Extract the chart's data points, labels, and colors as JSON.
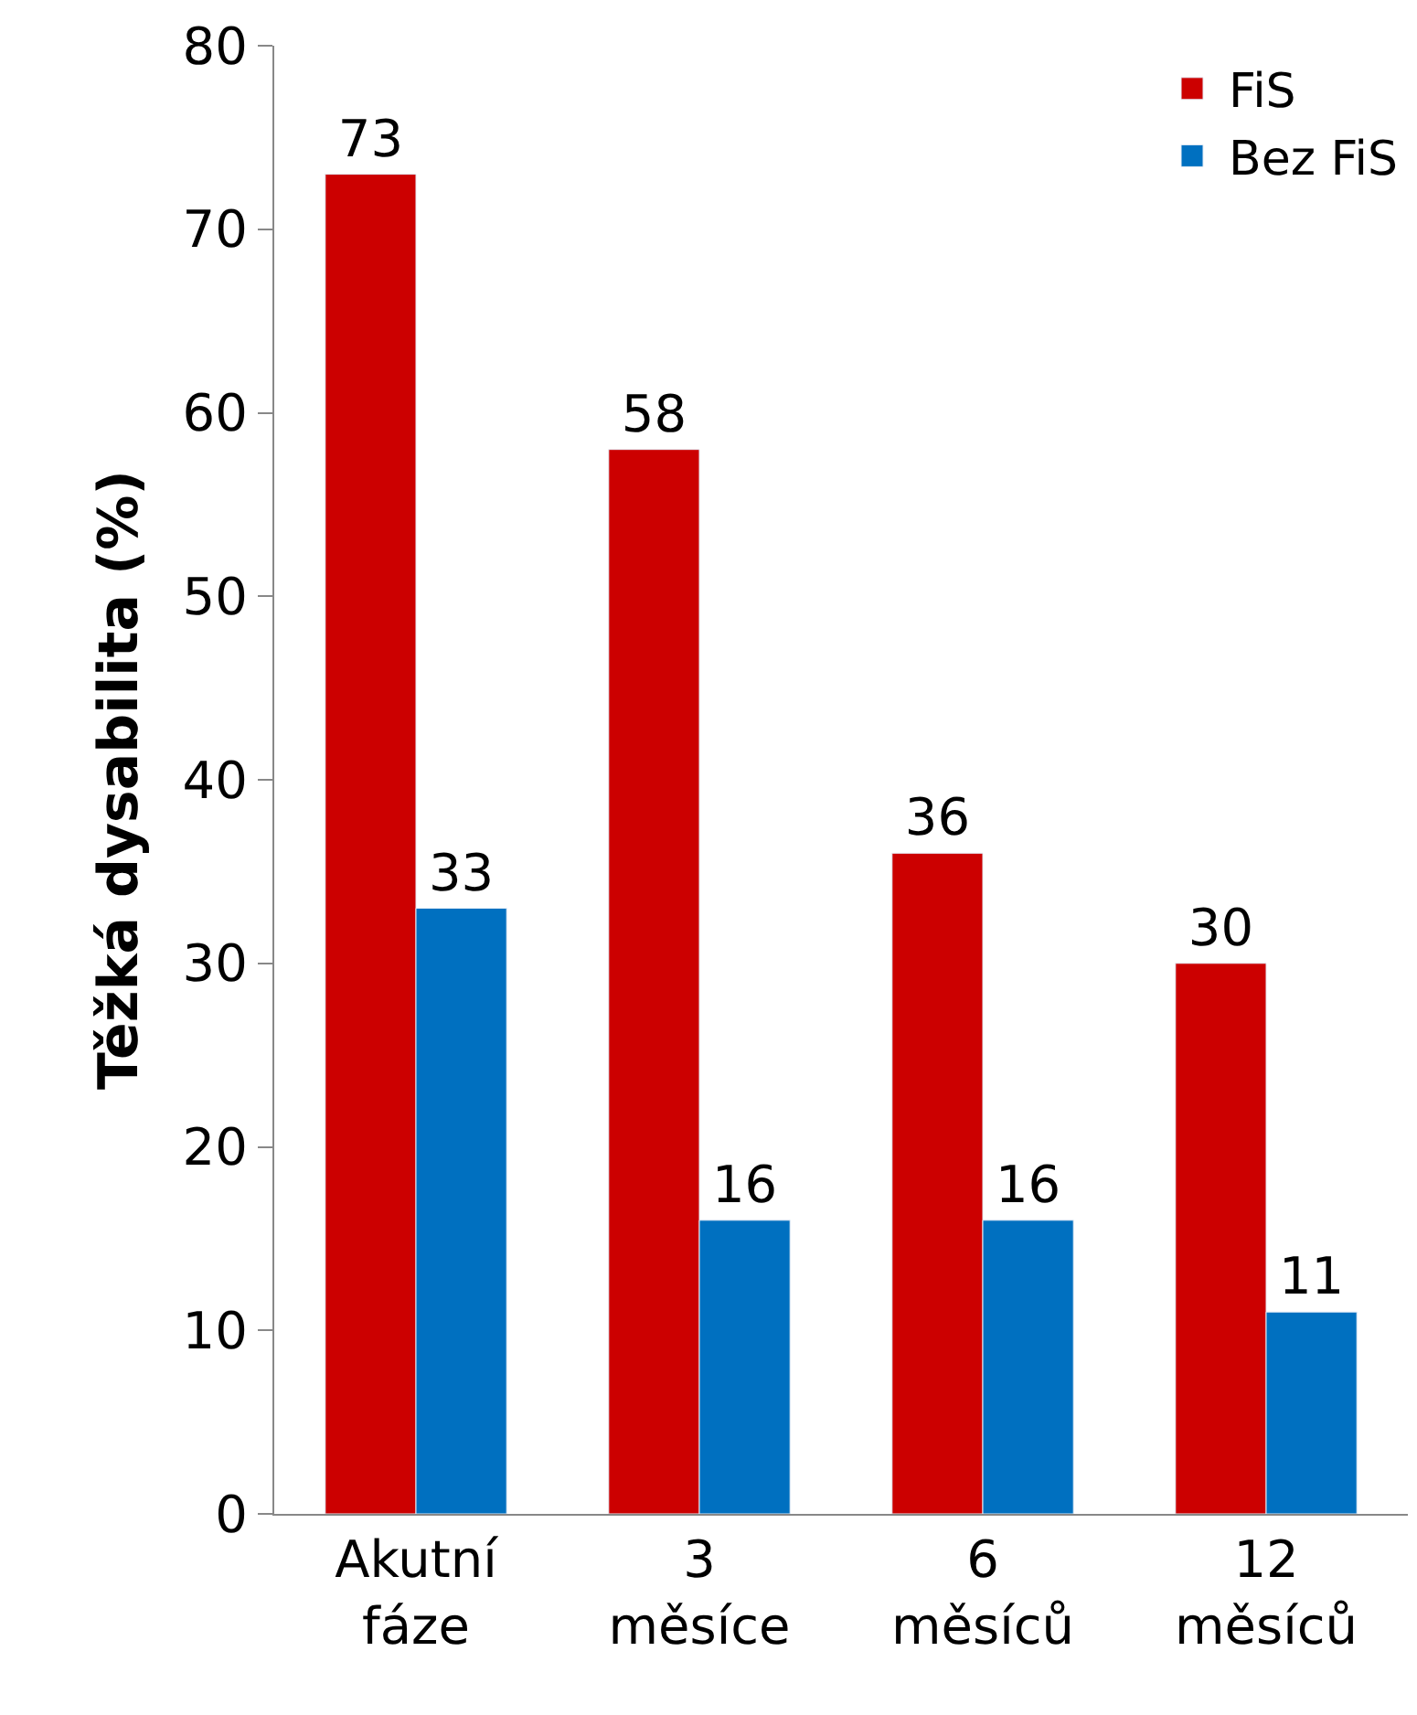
{
  "chart_data": {
    "type": "bar",
    "ylabel": "Těžká dysabilita (%)",
    "categories": [
      "Akutní\nfáze",
      "3\nměsíce",
      "6\nměsíců",
      "12\nměsíců"
    ],
    "series": [
      {
        "name": "FiS",
        "color": "#cc0000",
        "values": [
          73,
          58,
          36,
          30
        ]
      },
      {
        "name": "Bez FiS",
        "color": "#0070c0",
        "values": [
          33,
          16,
          16,
          11
        ]
      }
    ],
    "ylim": [
      0,
      80
    ],
    "yticks": [
      0,
      10,
      20,
      30,
      40,
      50,
      60,
      70,
      80
    ],
    "data_labels": true,
    "legend": "top right"
  }
}
